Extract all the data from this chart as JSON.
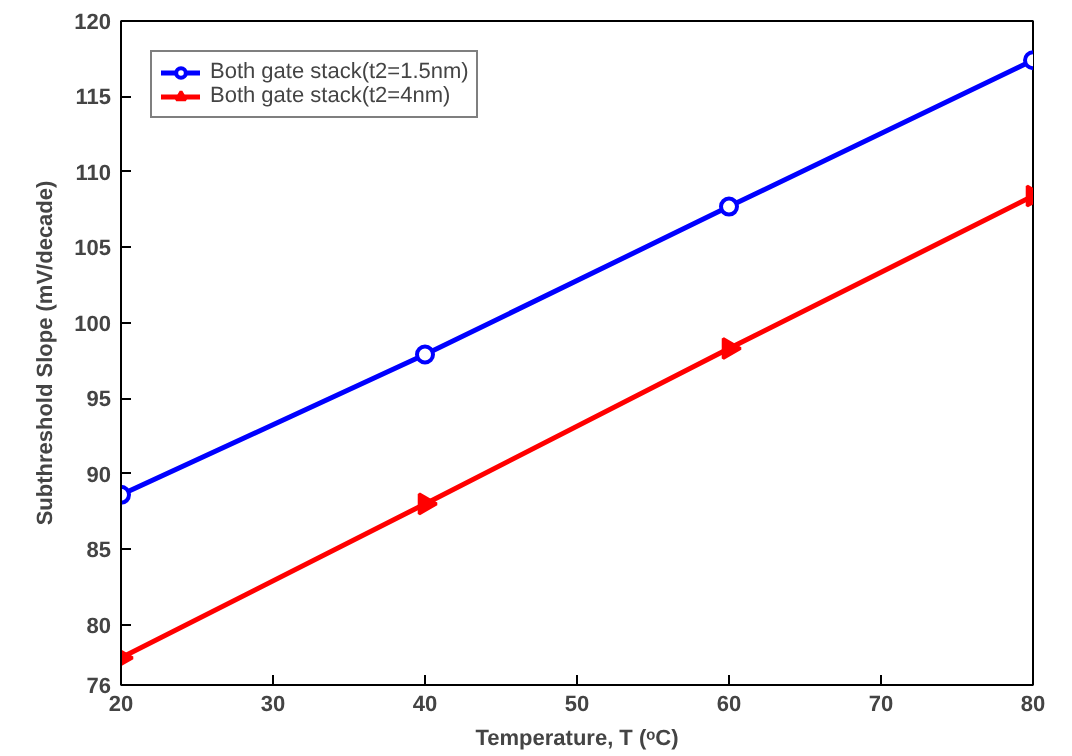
{
  "chart_data": {
    "type": "line",
    "xlabel": "Temperature, T (ᵒC)",
    "ylabel": "Subthreshold Slope (mV/decade)",
    "x": [
      20,
      40,
      60,
      80
    ],
    "xlim": [
      20,
      80
    ],
    "xticks": [
      20,
      30,
      40,
      50,
      60,
      70,
      80
    ],
    "ylim": [
      76,
      120
    ],
    "yticks": [
      76,
      80,
      85,
      90,
      95,
      100,
      105,
      110,
      115,
      120
    ],
    "series": [
      {
        "name": "Both gate stack(t2=1.5nm)",
        "color": "#0000ff",
        "marker": "circle",
        "values": [
          88.6,
          97.9,
          107.7,
          117.4
        ]
      },
      {
        "name": "Both gate stack(t2=4nm)",
        "color": "#ff0000",
        "marker": "triangle",
        "values": [
          77.8,
          88.0,
          98.3,
          108.4
        ]
      }
    ],
    "legend": "top left",
    "grid": false,
    "line_style": "solid"
  }
}
